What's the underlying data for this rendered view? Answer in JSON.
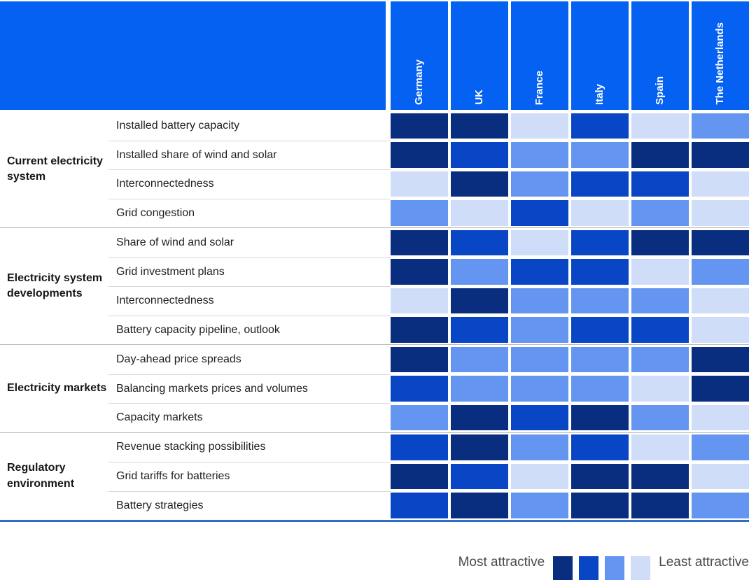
{
  "palette": {
    "header_bg": "#0561F1",
    "header_text": "#FFFFFF",
    "level_colors": [
      "#0A2E7F",
      "#0946C6",
      "#6495F0",
      "#CFDDF8"
    ],
    "bottom_rule": "#2E6EC8"
  },
  "legend": {
    "most_label": "Most attractive",
    "least_label": "Least attractive",
    "swatch_levels": [
      1,
      2,
      3,
      4
    ],
    "position": "bottom-right"
  },
  "chart_data": {
    "type": "heatmap",
    "value_scale": "attractiveness level: 1 = most attractive, 4 = least attractive",
    "columns": [
      "Germany",
      "UK",
      "France",
      "Italy",
      "Spain",
      "The Netherlands"
    ],
    "row_groups": [
      {
        "label": "Current electricity system",
        "rows": [
          {
            "label": "Installed battery capacity",
            "levels": [
              1,
              1,
              4,
              2,
              4,
              3
            ]
          },
          {
            "label": "Installed share of wind and solar",
            "levels": [
              1,
              2,
              3,
              3,
              1,
              1
            ]
          },
          {
            "label": "Interconnectedness",
            "levels": [
              4,
              1,
              3,
              2,
              2,
              4
            ]
          },
          {
            "label": "Grid congestion",
            "levels": [
              3,
              4,
              2,
              4,
              3,
              4
            ]
          }
        ]
      },
      {
        "label": "Electricity system developments",
        "rows": [
          {
            "label": "Share of wind and solar",
            "levels": [
              1,
              2,
              4,
              2,
              1,
              1
            ]
          },
          {
            "label": "Grid investment plans",
            "levels": [
              1,
              3,
              2,
              2,
              4,
              3
            ]
          },
          {
            "label": "Interconnectedness",
            "levels": [
              4,
              1,
              3,
              3,
              3,
              4
            ]
          },
          {
            "label": "Battery capacity pipeline, outlook",
            "levels": [
              1,
              2,
              3,
              2,
              2,
              4
            ]
          }
        ]
      },
      {
        "label": "Electricity markets",
        "rows": [
          {
            "label": "Day-ahead price spreads",
            "levels": [
              1,
              3,
              3,
              3,
              3,
              1
            ]
          },
          {
            "label": "Balancing markets prices and volumes",
            "levels": [
              2,
              3,
              3,
              3,
              4,
              1
            ]
          },
          {
            "label": "Capacity markets",
            "levels": [
              3,
              1,
              2,
              1,
              3,
              4
            ]
          }
        ]
      },
      {
        "label": "Regulatory environment",
        "rows": [
          {
            "label": "Revenue stacking possibilities",
            "levels": [
              2,
              1,
              3,
              2,
              4,
              3
            ]
          },
          {
            "label": "Grid tariffs for batteries",
            "levels": [
              1,
              2,
              4,
              1,
              1,
              4
            ]
          },
          {
            "label": "Battery strategies",
            "levels": [
              2,
              1,
              3,
              1,
              1,
              3
            ]
          }
        ]
      }
    ]
  }
}
